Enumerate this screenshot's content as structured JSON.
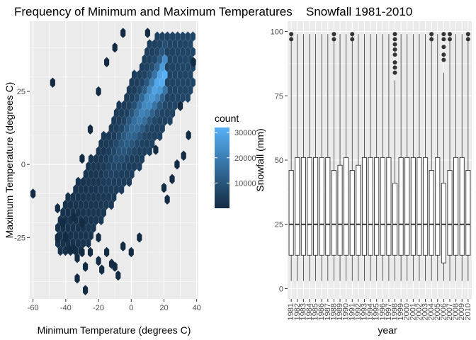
{
  "chart_data": [
    {
      "type": "hexbin",
      "title": "Frequency of Minimum and Maximum Temperatures",
      "xlabel": "Minimum Temperature (degrees C)",
      "ylabel": "Maximum Temperature (degrees C)",
      "xlim": [
        -62,
        41
      ],
      "ylim": [
        -46,
        49
      ],
      "xticks": [
        -60,
        -40,
        -20,
        0,
        20,
        40
      ],
      "yticks": [
        -25,
        0,
        25
      ],
      "legend": {
        "title": "count",
        "placement": "right",
        "min": 1,
        "max": 32000,
        "ticks": [
          10000,
          20000,
          30000
        ],
        "low_color": "#132B43",
        "high_color": "#56B1F7"
      },
      "ridge": {
        "x": [
          -25,
          18
        ],
        "y": [
          -12,
          29
        ],
        "peak_count": 32000
      },
      "outliers": [
        [
          -60,
          -10
        ],
        [
          -48,
          28
        ],
        [
          -40,
          -25
        ],
        [
          -38,
          -29
        ],
        [
          -35,
          -29
        ],
        [
          -33,
          -32
        ],
        [
          -30,
          -30
        ],
        [
          -28,
          -35
        ],
        [
          -25,
          -30
        ],
        [
          -20,
          -33
        ],
        [
          -18,
          -36
        ],
        [
          -12,
          -34
        ],
        [
          -10,
          -35
        ],
        [
          -8,
          -38
        ],
        [
          -33,
          -39
        ],
        [
          -28,
          -43
        ],
        [
          -35,
          -18
        ],
        [
          -30,
          -20
        ],
        [
          -20,
          -25
        ],
        [
          -5,
          -28
        ],
        [
          0,
          -30
        ],
        [
          -45,
          -15
        ],
        [
          -42,
          -20
        ],
        [
          -45,
          -25
        ],
        [
          -15,
          -30
        ],
        [
          5,
          -25
        ],
        [
          20,
          -8
        ],
        [
          22,
          -12
        ],
        [
          25,
          -5
        ],
        [
          28,
          0
        ],
        [
          32,
          3
        ],
        [
          35,
          10
        ],
        [
          30,
          20
        ],
        [
          -10,
          40
        ],
        [
          -20,
          25
        ],
        [
          -15,
          35
        ],
        [
          -25,
          12
        ],
        [
          -30,
          2
        ],
        [
          -5,
          45
        ],
        [
          10,
          45
        ],
        [
          15,
          5
        ],
        [
          38,
          35
        ]
      ],
      "grid": true
    },
    {
      "type": "boxplot",
      "title": "Snowfall 1981-2010",
      "xlabel": "year",
      "ylabel": "Snowfall (mm)",
      "ylim": [
        0,
        100
      ],
      "yticks": [
        0,
        25,
        50,
        75,
        100
      ],
      "categories": [
        "1981",
        "1982",
        "1983",
        "1984",
        "1985",
        "1986",
        "1987",
        "1988",
        "1989",
        "1990",
        "1991",
        "1992",
        "1993",
        "1994",
        "1995",
        "1996",
        "1997",
        "1998",
        "1999",
        "2000",
        "2001",
        "2002",
        "2003",
        "2004",
        "2005",
        "2006",
        "2007",
        "2008",
        "2009",
        "2010"
      ],
      "boxes": [
        {
          "year": "1981",
          "min": 3,
          "q1": 13,
          "median": 25,
          "q3": 46,
          "max": 99,
          "outliers": [
            97,
            99
          ]
        },
        {
          "year": "1982",
          "min": 3,
          "q1": 13,
          "median": 25,
          "q3": 51,
          "max": 99,
          "outliers": []
        },
        {
          "year": "1983",
          "min": 3,
          "q1": 13,
          "median": 25,
          "q3": 51,
          "max": 99,
          "outliers": []
        },
        {
          "year": "1984",
          "min": 3,
          "q1": 13,
          "median": 25,
          "q3": 51,
          "max": 99,
          "outliers": []
        },
        {
          "year": "1985",
          "min": 3,
          "q1": 13,
          "median": 25,
          "q3": 51,
          "max": 99,
          "outliers": []
        },
        {
          "year": "1986",
          "min": 3,
          "q1": 13,
          "median": 25,
          "q3": 51,
          "max": 99,
          "outliers": []
        },
        {
          "year": "1987",
          "min": 3,
          "q1": 13,
          "median": 25,
          "q3": 51,
          "max": 99,
          "outliers": []
        },
        {
          "year": "1988",
          "min": 3,
          "q1": 13,
          "median": 25,
          "q3": 46,
          "max": 99,
          "outliers": [
            97,
            99
          ]
        },
        {
          "year": "1989",
          "min": 3,
          "q1": 13,
          "median": 25,
          "q3": 48,
          "max": 99,
          "outliers": []
        },
        {
          "year": "1990",
          "min": 3,
          "q1": 13,
          "median": 25,
          "q3": 51,
          "max": 99,
          "outliers": []
        },
        {
          "year": "1991",
          "min": 3,
          "q1": 13,
          "median": 25,
          "q3": 46,
          "max": 99,
          "outliers": [
            97,
            99
          ]
        },
        {
          "year": "1992",
          "min": 3,
          "q1": 13,
          "median": 25,
          "q3": 48,
          "max": 99,
          "outliers": []
        },
        {
          "year": "1993",
          "min": 3,
          "q1": 13,
          "median": 25,
          "q3": 51,
          "max": 99,
          "outliers": []
        },
        {
          "year": "1994",
          "min": 3,
          "q1": 13,
          "median": 25,
          "q3": 51,
          "max": 99,
          "outliers": []
        },
        {
          "year": "1995",
          "min": 3,
          "q1": 13,
          "median": 25,
          "q3": 51,
          "max": 99,
          "outliers": []
        },
        {
          "year": "1996",
          "min": 3,
          "q1": 13,
          "median": 25,
          "q3": 51,
          "max": 99,
          "outliers": []
        },
        {
          "year": "1997",
          "min": 3,
          "q1": 13,
          "median": 25,
          "q3": 51,
          "max": 99,
          "outliers": []
        },
        {
          "year": "1998",
          "min": 3,
          "q1": 13,
          "median": 25,
          "q3": 41,
          "max": 81,
          "outliers": [
            84,
            86,
            88,
            91,
            93,
            95,
            97,
            99
          ]
        },
        {
          "year": "1999",
          "min": 3,
          "q1": 13,
          "median": 25,
          "q3": 51,
          "max": 99,
          "outliers": []
        },
        {
          "year": "2000",
          "min": 3,
          "q1": 13,
          "median": 25,
          "q3": 51,
          "max": 99,
          "outliers": []
        },
        {
          "year": "2001",
          "min": 3,
          "q1": 13,
          "median": 25,
          "q3": 51,
          "max": 99,
          "outliers": []
        },
        {
          "year": "2002",
          "min": 3,
          "q1": 13,
          "median": 25,
          "q3": 51,
          "max": 99,
          "outliers": []
        },
        {
          "year": "2003",
          "min": 3,
          "q1": 13,
          "median": 25,
          "q3": 51,
          "max": 99,
          "outliers": []
        },
        {
          "year": "2004",
          "min": 3,
          "q1": 13,
          "median": 25,
          "q3": 46,
          "max": 99,
          "outliers": [
            97,
            99
          ]
        },
        {
          "year": "2005",
          "min": 3,
          "q1": 13,
          "median": 25,
          "q3": 51,
          "max": 99,
          "outliers": []
        },
        {
          "year": "2006",
          "min": 3,
          "q1": 10,
          "median": 25,
          "q3": 41,
          "max": 84,
          "outliers": [
            89,
            91,
            94,
            97,
            99
          ]
        },
        {
          "year": "2007",
          "min": 3,
          "q1": 13,
          "median": 25,
          "q3": 46,
          "max": 99,
          "outliers": [
            97,
            99
          ]
        },
        {
          "year": "2008",
          "min": 3,
          "q1": 13,
          "median": 25,
          "q3": 51,
          "max": 99,
          "outliers": []
        },
        {
          "year": "2009",
          "min": 3,
          "q1": 13,
          "median": 25,
          "q3": 51,
          "max": 99,
          "outliers": []
        },
        {
          "year": "2010",
          "min": 3,
          "q1": 13,
          "median": 25,
          "q3": 46,
          "max": 99,
          "outliers": [
            97,
            99
          ]
        }
      ],
      "grid": true
    }
  ],
  "colors": {
    "panel_bg": "#EBEBEB",
    "grid_major": "#FFFFFF",
    "hex_low": "#132B43",
    "hex_high": "#56B1F7",
    "box_fill": "#FFFFFF",
    "box_stroke": "#333333",
    "point": "#333333"
  }
}
